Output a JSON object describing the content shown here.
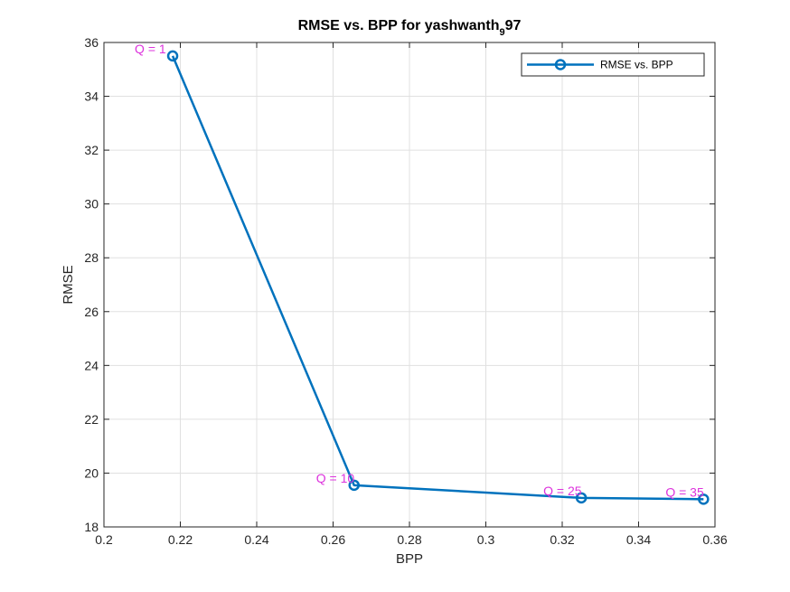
{
  "chart_data": {
    "type": "line",
    "title": "RMSE vs. BPP for yashwanth",
    "title_subscript": "9",
    "title_suffix": "97",
    "xlabel": "BPP",
    "ylabel": "RMSE",
    "xlim": [
      0.2,
      0.36
    ],
    "ylim": [
      18,
      36
    ],
    "xticks": [
      0.2,
      0.22,
      0.24,
      0.26,
      0.28,
      0.3,
      0.32,
      0.34,
      0.36
    ],
    "xtick_labels": [
      "0.2",
      "0.22",
      "0.24",
      "0.26",
      "0.28",
      "0.3",
      "0.32",
      "0.34",
      "0.36"
    ],
    "yticks": [
      18,
      20,
      22,
      24,
      26,
      28,
      30,
      32,
      34,
      36
    ],
    "ytick_labels": [
      "18",
      "20",
      "22",
      "24",
      "26",
      "28",
      "30",
      "32",
      "34",
      "36"
    ],
    "grid": true,
    "legend_position": "top-right",
    "series": [
      {
        "name": "RMSE vs. BPP",
        "color": "#0072BD",
        "marker": "circle",
        "x": [
          0.218,
          0.2655,
          0.325,
          0.357
        ],
        "y": [
          35.5,
          19.55,
          19.08,
          19.03
        ]
      }
    ],
    "annotations": [
      {
        "text": "Q = 1",
        "x": 0.218,
        "y": 35.5
      },
      {
        "text": "Q = 10",
        "x": 0.2655,
        "y": 19.55
      },
      {
        "text": "Q = 25",
        "x": 0.325,
        "y": 19.08
      },
      {
        "text": "Q = 35",
        "x": 0.357,
        "y": 19.03
      }
    ],
    "annotation_color": "#DD33DD"
  }
}
